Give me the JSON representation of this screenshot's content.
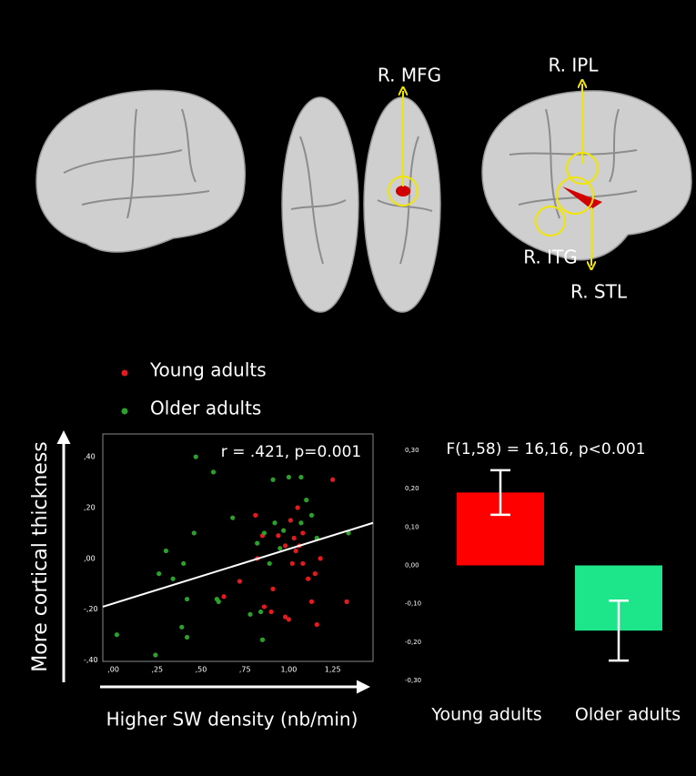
{
  "annotations": [
    "R. MFG",
    "R. IPL",
    "R. ITG",
    "R. STL"
  ],
  "chart_data": [
    {
      "type": "scatter",
      "annotation": "r = .421, p=0.001",
      "ylabel": "More cortical thickness",
      "xlabel": "Higher SW density (nb/min)",
      "xlim": [
        -0.06,
        1.48
      ],
      "ylim": [
        -0.405,
        0.49
      ],
      "xticks": [
        {
          "value": 0,
          "label": ",00"
        },
        {
          "value": 0.25,
          "label": ",25"
        },
        {
          "value": 0.5,
          "label": ",50"
        },
        {
          "value": 0.75,
          "label": ",75"
        },
        {
          "value": 1,
          "label": "1,00"
        },
        {
          "value": 1.25,
          "label": "1,25"
        }
      ],
      "yticks": [
        {
          "value": 0.4,
          "label": ",40"
        },
        {
          "value": 0.2,
          "label": ",20"
        },
        {
          "value": 0,
          "label": ",00"
        },
        {
          "value": -0.2,
          "label": "-,20"
        },
        {
          "value": -0.4,
          "label": "-,40"
        }
      ],
      "series": [
        {
          "name": "Young adults",
          "color": "#e41a1c",
          "x": [
            1.25,
            1.33,
            1.16,
            0.63,
            0.72,
            0.81,
            0.82,
            0.86,
            0.9,
            0.91,
            0.94,
            0.98,
            1.0,
            1.01,
            1.03,
            1.05,
            1.08,
            1.08,
            1.11,
            1.13,
            1.15,
            1.18,
            1.06,
            1.02,
            0.98,
            1.04,
            0.85
          ],
          "y": [
            0.31,
            -0.17,
            -0.26,
            -0.15,
            -0.09,
            0.17,
            0.0,
            -0.19,
            -0.21,
            -0.12,
            0.09,
            -0.23,
            -0.24,
            0.15,
            0.08,
            0.2,
            0.1,
            -0.02,
            -0.08,
            -0.17,
            -0.06,
            0.0,
            0.05,
            -0.02,
            0.05,
            0.03,
            0.09
          ]
        },
        {
          "name": "Older adults",
          "color": "#2ca02c",
          "x": [
            0.47,
            0.57,
            0.02,
            0.24,
            0.3,
            0.26,
            0.34,
            0.4,
            0.42,
            0.39,
            0.42,
            0.46,
            0.59,
            0.6,
            0.68,
            0.78,
            0.84,
            0.85,
            0.82,
            0.86,
            0.91,
            0.92,
            0.89,
            0.95,
            1.0,
            0.97,
            1.07,
            1.1,
            1.13,
            1.34,
            1.16,
            1.07
          ],
          "y": [
            0.4,
            0.34,
            -0.3,
            -0.38,
            0.03,
            -0.06,
            -0.08,
            -0.02,
            -0.16,
            -0.27,
            -0.31,
            0.1,
            -0.16,
            -0.17,
            0.16,
            -0.22,
            -0.21,
            -0.32,
            0.06,
            0.1,
            0.31,
            0.14,
            -0.02,
            0.04,
            0.32,
            0.11,
            0.32,
            0.23,
            0.17,
            0.1,
            0.08,
            0.14
          ]
        }
      ],
      "fit_line": {
        "x": [
          -0.06,
          1.48
        ],
        "y": [
          -0.19,
          0.14
        ]
      }
    },
    {
      "type": "bar",
      "title": "F(1,58) = 16,16, p<0.001",
      "categories": [
        "Young adults",
        "Older adults"
      ],
      "values": [
        0.19,
        -0.17
      ],
      "errors": [
        0.058,
        0.078
      ],
      "colors": [
        "#ff0000",
        "#1de58a"
      ],
      "ylim": [
        -0.3,
        0.3
      ],
      "yticks": [
        {
          "value": 0.3,
          "label": "0,30"
        },
        {
          "value": 0.2,
          "label": "0,20"
        },
        {
          "value": 0.1,
          "label": "0,10"
        },
        {
          "value": 0,
          "label": "0,00"
        },
        {
          "value": -0.1,
          "label": "-0,10"
        },
        {
          "value": -0.2,
          "label": "-0,20"
        },
        {
          "value": -0.3,
          "label": "-0,30"
        }
      ]
    }
  ]
}
